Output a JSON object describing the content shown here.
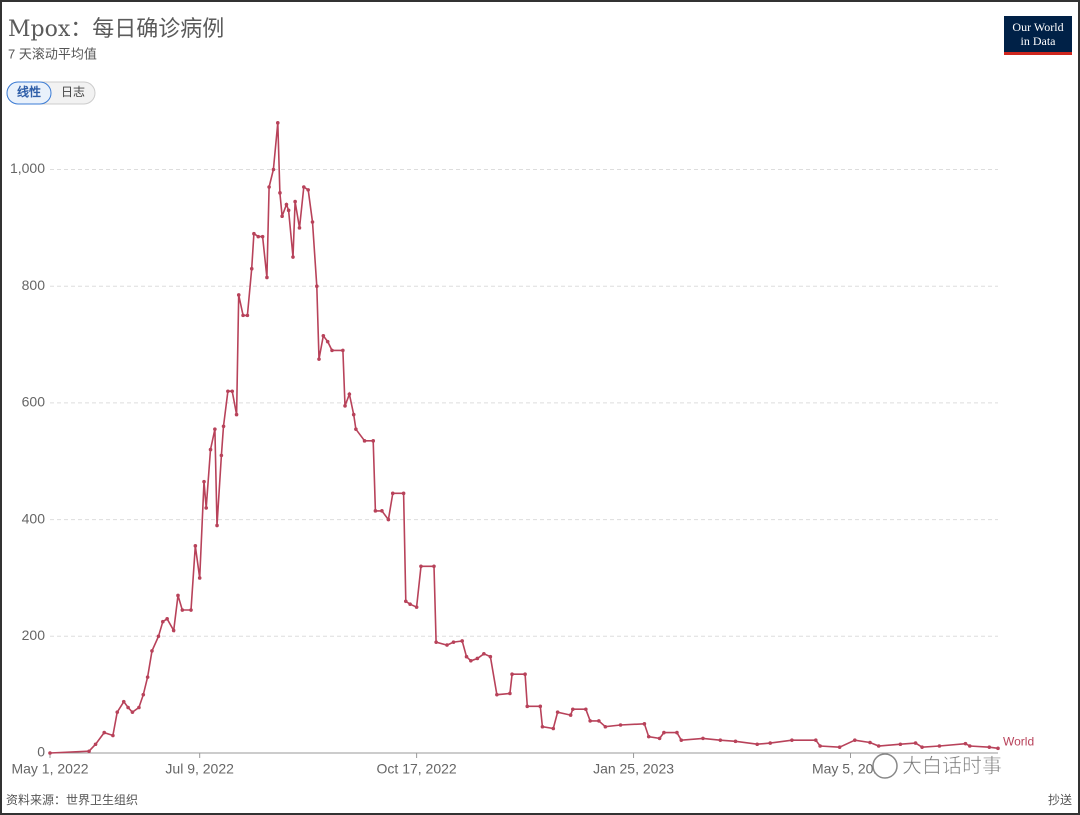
{
  "chart_data": {
    "type": "line",
    "title": "Mpox：每日确诊病例",
    "subtitle": "7 天滚动平均值",
    "controls": [
      "线性",
      "日志"
    ],
    "logo": [
      "Our World",
      "in Data"
    ],
    "source": "资料来源：世界卫生组织",
    "share": "抄送",
    "watermark": "大白话时事",
    "grid": true,
    "xlim": [
      "2022-05-01",
      "2023-07-12"
    ],
    "ylim": [
      0,
      1090
    ],
    "xticks": [
      {
        "value": "2022-05-01",
        "label": "May 1, 2022"
      },
      {
        "value": "2022-07-09",
        "label": "Jul 9, 2022"
      },
      {
        "value": "2022-10-17",
        "label": "Oct 17, 2022"
      },
      {
        "value": "2023-01-25",
        "label": "Jan 25, 2023"
      },
      {
        "value": "2023-05-05",
        "label": "May 5, 2023"
      }
    ],
    "yticks": [
      0,
      200,
      400,
      600,
      800,
      {
        "value": 1000,
        "label": "1,000"
      }
    ],
    "x": [
      "2022-05-01",
      "2022-05-19",
      "2022-05-22",
      "2022-05-26",
      "2022-05-30",
      "2022-06-01",
      "2022-06-04",
      "2022-06-06",
      "2022-06-08",
      "2022-06-11",
      "2022-06-13",
      "2022-06-15",
      "2022-06-17",
      "2022-06-20",
      "2022-06-22",
      "2022-06-24",
      "2022-06-27",
      "2022-06-29",
      "2022-07-01",
      "2022-07-05",
      "2022-07-07",
      "2022-07-09",
      "2022-07-11",
      "2022-07-12",
      "2022-07-14",
      "2022-07-16",
      "2022-07-17",
      "2022-07-19",
      "2022-07-20",
      "2022-07-22",
      "2022-07-24",
      "2022-07-26",
      "2022-07-27",
      "2022-07-29",
      "2022-07-31",
      "2022-08-02",
      "2022-08-03",
      "2022-08-05",
      "2022-08-07",
      "2022-08-09",
      "2022-08-10",
      "2022-08-12",
      "2022-08-14",
      "2022-08-15",
      "2022-08-16",
      "2022-08-18",
      "2022-08-19",
      "2022-08-21",
      "2022-08-22",
      "2022-08-24",
      "2022-08-26",
      "2022-08-28",
      "2022-08-30",
      "2022-09-01",
      "2022-09-02",
      "2022-09-04",
      "2022-09-06",
      "2022-09-08",
      "2022-09-13",
      "2022-09-14",
      "2022-09-16",
      "2022-09-18",
      "2022-09-19",
      "2022-09-23",
      "2022-09-27",
      "2022-09-28",
      "2022-10-01",
      "2022-10-04",
      "2022-10-06",
      "2022-10-11",
      "2022-10-12",
      "2022-10-14",
      "2022-10-17",
      "2022-10-19",
      "2022-10-25",
      "2022-10-26",
      "2022-10-31",
      "2022-11-03",
      "2022-11-07",
      "2022-11-09",
      "2022-11-11",
      "2022-11-14",
      "2022-11-17",
      "2022-11-20",
      "2022-11-23",
      "2022-11-29",
      "2022-11-30",
      "2022-12-06",
      "2022-12-07",
      "2022-12-13",
      "2022-12-14",
      "2022-12-19",
      "2022-12-21",
      "2022-12-27",
      "2022-12-28",
      "2023-01-03",
      "2023-01-05",
      "2023-01-09",
      "2023-01-12",
      "2023-01-19",
      "2023-01-30",
      "2023-02-01",
      "2023-02-06",
      "2023-02-08",
      "2023-02-14",
      "2023-02-16",
      "2023-02-26",
      "2023-03-06",
      "2023-03-13",
      "2023-03-23",
      "2023-03-29",
      "2023-04-08",
      "2023-04-19",
      "2023-04-21",
      "2023-04-30",
      "2023-05-07",
      "2023-05-14",
      "2023-05-18",
      "2023-05-28",
      "2023-06-04",
      "2023-06-07",
      "2023-06-15",
      "2023-06-27",
      "2023-06-29",
      "2023-07-08",
      "2023-07-12"
    ],
    "series": [
      {
        "name": "World",
        "color": "#b8425a",
        "values": [
          0,
          3,
          15,
          35,
          30,
          70,
          88,
          78,
          70,
          78,
          100,
          130,
          175,
          200,
          225,
          230,
          210,
          270,
          245,
          245,
          355,
          300,
          465,
          420,
          520,
          555,
          390,
          510,
          560,
          620,
          620,
          580,
          785,
          750,
          750,
          830,
          890,
          885,
          885,
          815,
          970,
          1000,
          1080,
          960,
          920,
          940,
          930,
          850,
          945,
          900,
          970,
          965,
          910,
          800,
          675,
          715,
          705,
          690,
          690,
          595,
          615,
          580,
          555,
          535,
          535,
          415,
          415,
          400,
          445,
          445,
          260,
          255,
          250,
          320,
          320,
          190,
          185,
          190,
          192,
          165,
          158,
          162,
          170,
          165,
          100,
          102,
          135,
          135,
          80,
          80,
          45,
          42,
          70,
          65,
          75,
          75,
          55,
          55,
          45,
          48,
          50,
          28,
          25,
          35,
          35,
          22,
          25,
          22,
          20,
          15,
          17,
          22,
          22,
          12,
          10,
          22,
          18,
          12,
          15,
          17,
          10,
          12,
          16,
          12,
          10,
          8
        ]
      }
    ]
  }
}
